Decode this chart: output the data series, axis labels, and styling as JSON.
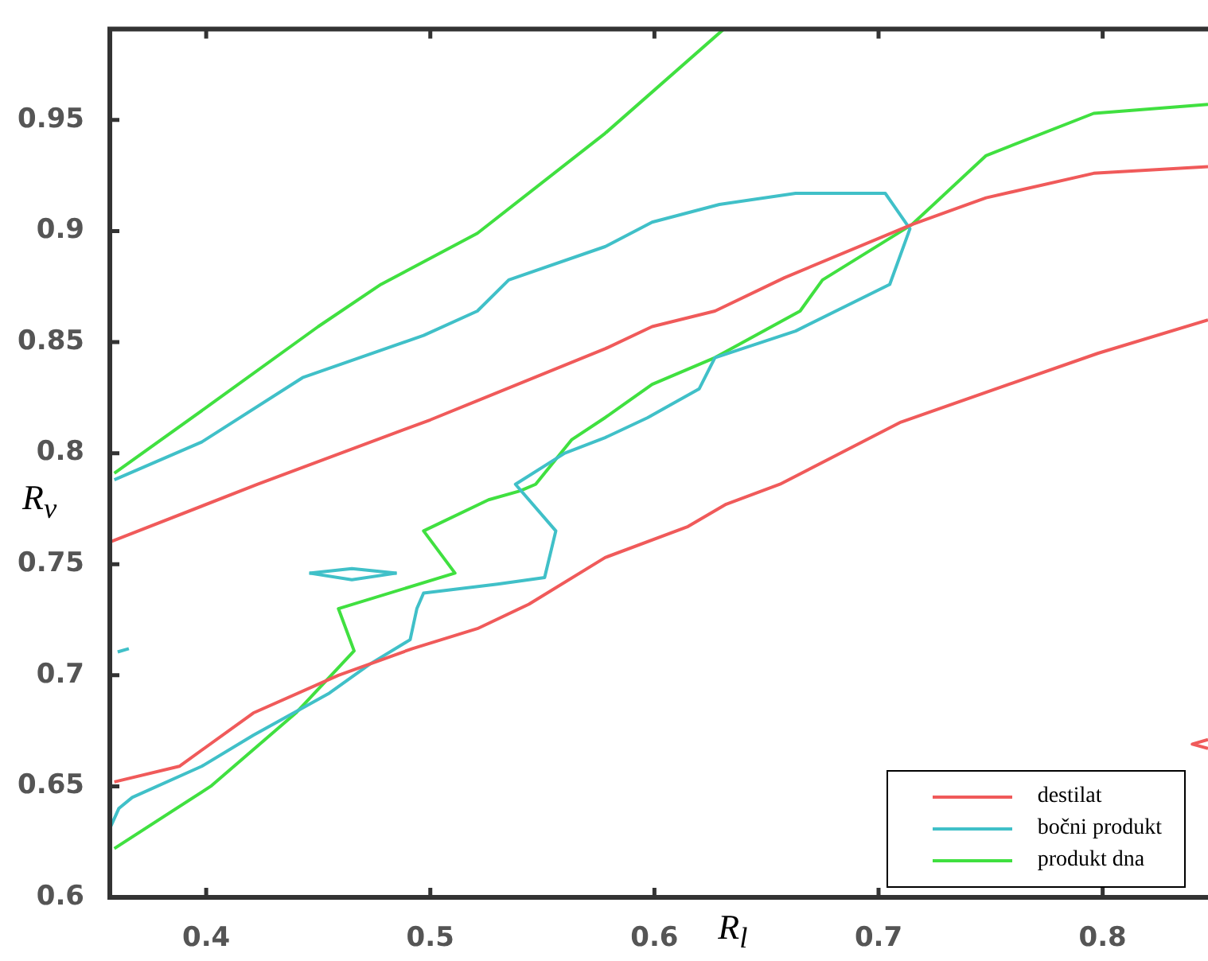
{
  "chart_data": {
    "type": "line",
    "xlabel": "R$_{l}$",
    "ylabel": "R$_{v}$",
    "xlim": [
      0.357,
      0.847
    ],
    "ylim": [
      0.6,
      0.991
    ],
    "xticks": [
      0.4,
      0.5,
      0.6,
      0.7,
      0.8
    ],
    "yticks": [
      0.6,
      0.65,
      0.7,
      0.75,
      0.8,
      0.85,
      0.9,
      0.95
    ],
    "legend": "bottom right",
    "series": [
      {
        "name": "destilat",
        "color": "#f05a5a",
        "x": [
          0.357,
          0.423,
          0.5,
          0.578,
          0.599,
          0.627,
          0.658,
          0.715,
          0.748,
          0.796,
          0.847,
          null,
          0.359,
          0.388,
          0.421,
          0.459,
          0.492,
          0.521,
          0.544,
          0.578,
          0.615,
          0.632,
          0.656,
          0.71,
          0.798,
          0.847
        ],
        "values": [
          0.76,
          0.786,
          0.815,
          0.847,
          0.857,
          0.864,
          0.879,
          0.903,
          0.915,
          0.926,
          0.929,
          null,
          0.652,
          0.659,
          0.683,
          0.7,
          0.712,
          0.721,
          0.732,
          0.753,
          0.767,
          0.777,
          0.786,
          0.814,
          0.845,
          0.86
        ]
      },
      {
        "color": "#f05a5a",
        "x": [
          0.847,
          0.84,
          0.847
        ],
        "values": [
          0.671,
          0.669,
          0.667
        ]
      },
      {
        "name": "bočni produkt",
        "color": "#40c0c8",
        "x": [
          0.359,
          0.398,
          0.443,
          0.497,
          0.521,
          0.535,
          0.578,
          0.599,
          0.629,
          0.663,
          0.703,
          0.714,
          0.705,
          0.663,
          0.627,
          0.62,
          0.597,
          0.578,
          0.56,
          0.538,
          0.556,
          0.551,
          0.53,
          0.497,
          0.494,
          0.491,
          0.473,
          0.455,
          0.421,
          0.398,
          0.367,
          0.361,
          0.357
        ],
        "values": [
          0.788,
          0.805,
          0.834,
          0.853,
          0.864,
          0.878,
          0.893,
          0.904,
          0.912,
          0.917,
          0.917,
          0.901,
          0.876,
          0.855,
          0.843,
          0.829,
          0.816,
          0.807,
          0.8,
          0.786,
          0.765,
          0.744,
          0.741,
          0.737,
          0.73,
          0.716,
          0.705,
          0.692,
          0.673,
          0.659,
          0.645,
          0.64,
          0.631
        ]
      },
      {
        "color": "#40c0c8",
        "x": [
          0.446,
          0.465,
          0.485
        ],
        "values": [
          0.746,
          0.748,
          0.746
        ]
      },
      {
        "color": "#40c0c8",
        "x": [
          0.446,
          0.465,
          0.485
        ],
        "values": [
          0.746,
          0.743,
          0.746
        ]
      },
      {
        "color": "#40c0c8",
        "x": [
          0.3605,
          0.3655
        ],
        "values": [
          0.7105,
          0.712
        ]
      },
      {
        "name": "produkt dna",
        "color": "#40e040",
        "x": [
          0.359,
          0.402,
          0.45,
          0.478,
          0.521,
          0.578,
          0.631,
          null,
          0.359,
          0.402,
          0.44,
          0.466,
          0.459,
          0.511,
          0.497,
          0.526,
          0.54,
          0.547,
          0.563,
          0.578,
          0.599,
          0.627,
          0.665,
          0.675,
          0.715,
          0.748,
          0.796,
          0.847
        ],
        "values": [
          0.791,
          0.822,
          0.857,
          0.876,
          0.899,
          0.944,
          0.991,
          null,
          0.622,
          0.65,
          0.683,
          0.711,
          0.73,
          0.746,
          0.765,
          0.779,
          0.783,
          0.786,
          0.806,
          0.816,
          0.831,
          0.843,
          0.864,
          0.878,
          0.903,
          0.934,
          0.953,
          0.957
        ]
      }
    ]
  }
}
